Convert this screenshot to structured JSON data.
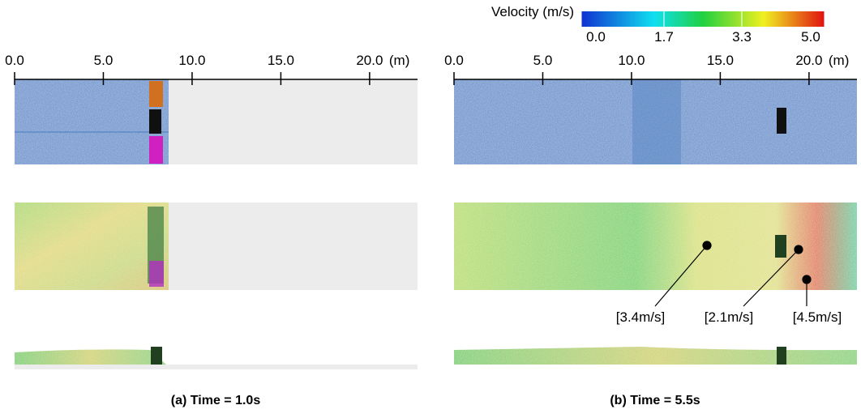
{
  "colorbar": {
    "title": "Velocity (m/s)",
    "range": [
      0,
      5
    ],
    "ticks": [
      {
        "value": 0,
        "label": "0.0"
      },
      {
        "value": 1.7,
        "label": "1.7"
      },
      {
        "value": 3.3,
        "label": "3.3"
      },
      {
        "value": 5,
        "label": "5.0"
      }
    ]
  },
  "panels": [
    {
      "caption": "(a) Time = 1.0s",
      "axis": {
        "unit": "(m)",
        "xlim": [
          0,
          22.7
        ],
        "ticks": [
          {
            "value": 0,
            "label": "0.0"
          },
          {
            "value": 5,
            "label": "5.0"
          },
          {
            "value": 10,
            "label": "10.0"
          },
          {
            "value": 15,
            "label": "15.0"
          },
          {
            "value": 20,
            "label": "20.0"
          }
        ]
      }
    },
    {
      "caption": "(b) Time = 5.5s",
      "axis": {
        "unit": "(m)",
        "xlim": [
          0,
          22.7
        ],
        "ticks": [
          {
            "value": 0,
            "label": "0.0"
          },
          {
            "value": 5,
            "label": "5.0"
          },
          {
            "value": 10,
            "label": "10.0"
          },
          {
            "value": 15,
            "label": "15.0"
          },
          {
            "value": 20,
            "label": "20.0"
          }
        ]
      }
    }
  ],
  "annotations": [
    "[3.4m/s]",
    "[2.1m/s]",
    "[4.5m/s]"
  ]
}
